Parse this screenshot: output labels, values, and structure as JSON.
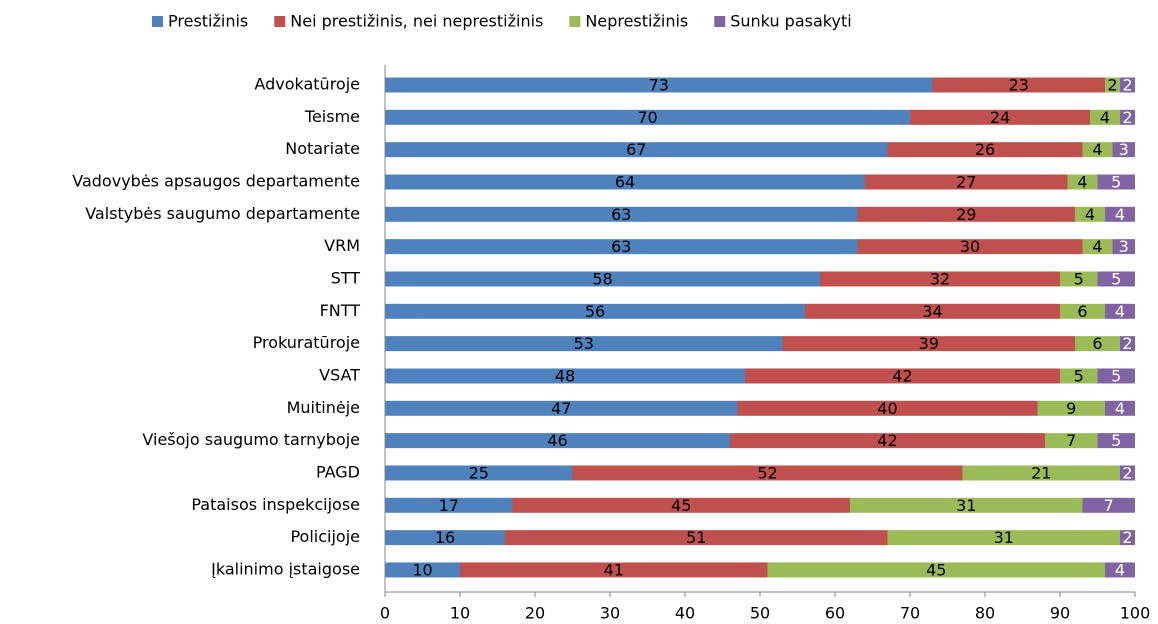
{
  "chart_data": {
    "type": "stacked_barh",
    "categories": [
      "Advokatūroje",
      "Teisme",
      "Notariate",
      "Vadovybės apsaugos departamente",
      "Valstybės saugumo departamente",
      "VRM",
      "STT",
      "FNTT",
      "Prokuratūroje",
      "VSAT",
      "Muitinėje",
      "Viešojo saugumo tarnyboje",
      "PAGD",
      "Pataisos inspekcijose",
      "Policijoje",
      "Įkalinimo įstaigose"
    ],
    "series": [
      {
        "name": "Prestižinis",
        "color": "#4f81bd",
        "values": [
          73,
          70,
          67,
          64,
          63,
          63,
          58,
          56,
          53,
          48,
          47,
          46,
          25,
          17,
          16,
          10
        ]
      },
      {
        "name": "Nei prestižinis, nei neprestižinis",
        "color": "#c0504d",
        "values": [
          23,
          24,
          26,
          27,
          29,
          30,
          32,
          34,
          39,
          42,
          40,
          42,
          52,
          45,
          51,
          41
        ]
      },
      {
        "name": "Neprestižinis",
        "color": "#9bbb59",
        "values": [
          2,
          4,
          4,
          4,
          4,
          4,
          5,
          6,
          6,
          5,
          9,
          7,
          21,
          31,
          31,
          45
        ]
      },
      {
        "name": "Sunku pasakyti",
        "color": "#8064a2",
        "values": [
          2,
          2,
          3,
          5,
          4,
          3,
          5,
          4,
          2,
          5,
          4,
          5,
          2,
          7,
          2,
          4
        ]
      }
    ],
    "xlim": [
      0,
      100
    ],
    "xticks": [
      0,
      10,
      20,
      30,
      40,
      50,
      60,
      70,
      80,
      90,
      100
    ],
    "legend": "top"
  }
}
